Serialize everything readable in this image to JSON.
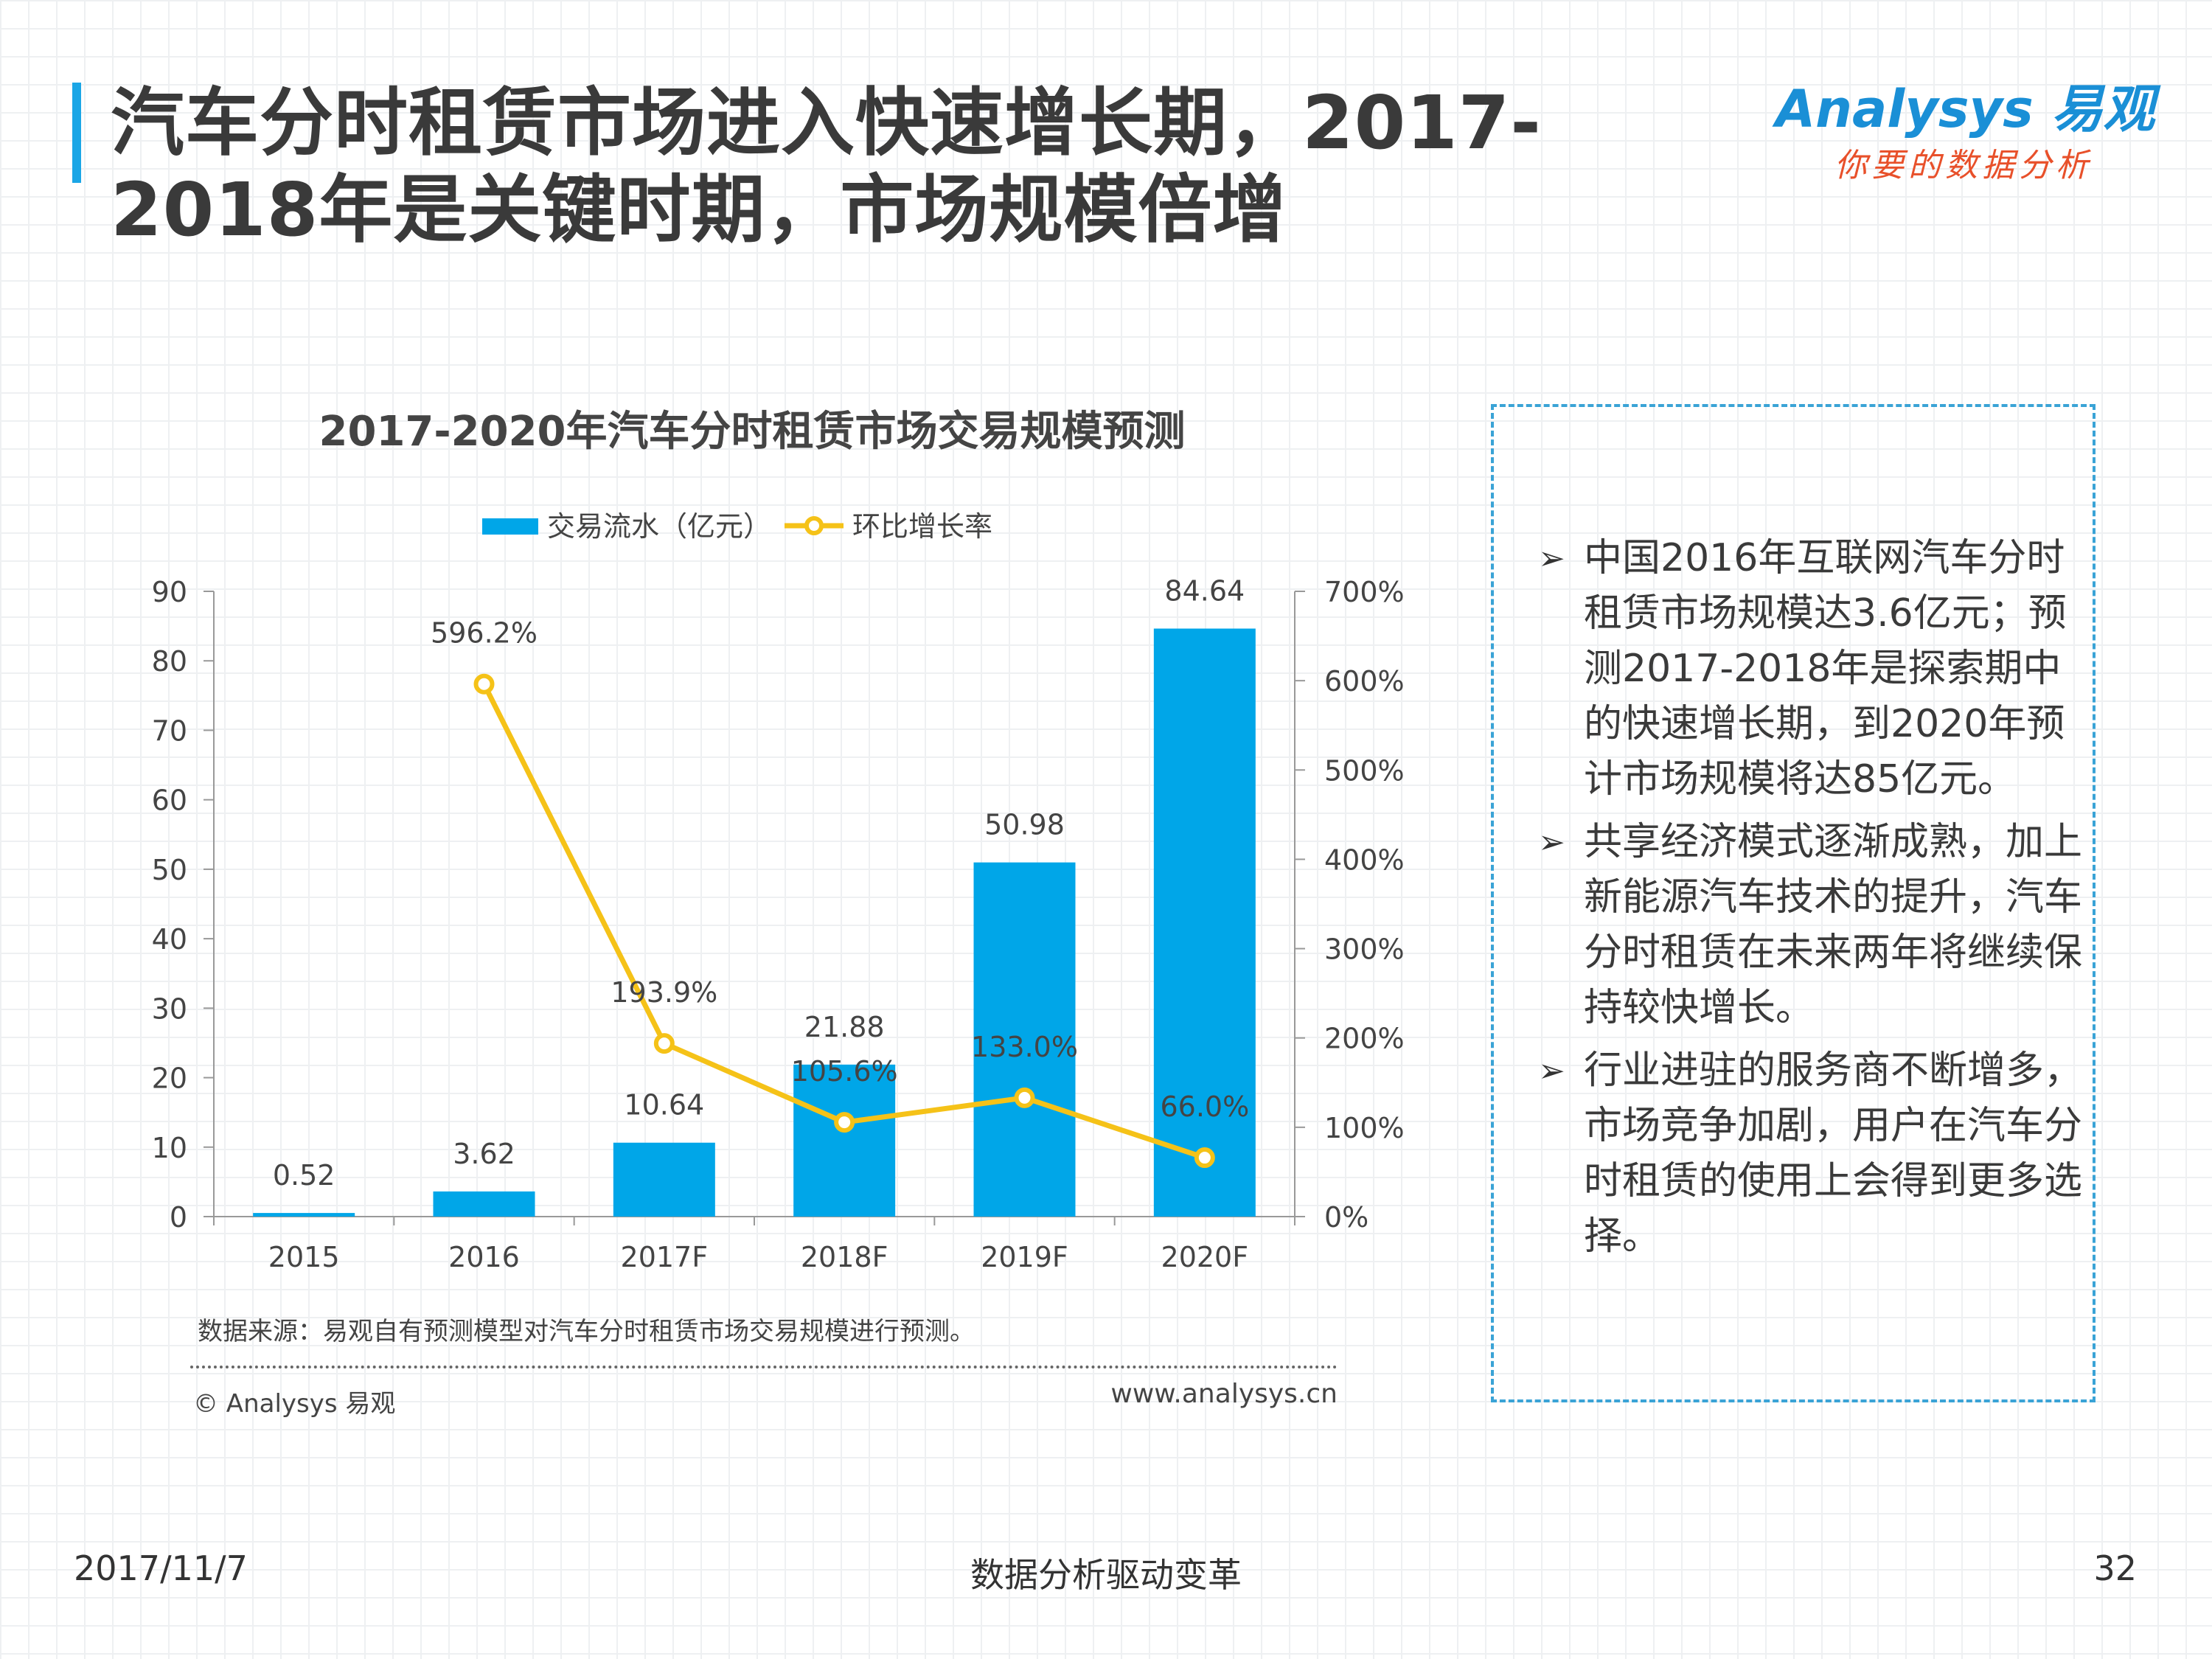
{
  "header": {
    "title": "汽车分时租赁市场进入快速增长期，2017-2018年是关键时期，市场规模倍增",
    "logo_main": "Analysys 易观",
    "logo_sub": "你要的数据分析"
  },
  "chart_data": {
    "type": "bar",
    "title": "2017-2020年汽车分时租赁市场交易规模预测",
    "categories": [
      "2015",
      "2016",
      "2017F",
      "2018F",
      "2019F",
      "2020F"
    ],
    "series": [
      {
        "name": "交易流水（亿元）",
        "type": "bar",
        "axis": "left",
        "values": [
          0.52,
          3.62,
          10.64,
          21.88,
          50.98,
          84.64
        ],
        "labels": [
          "0.52",
          "3.62",
          "10.64",
          "21.88",
          "50.98",
          "84.64"
        ],
        "color": "#00a6e8"
      },
      {
        "name": "环比增长率",
        "type": "line",
        "axis": "right",
        "values": [
          null,
          596.2,
          193.9,
          105.6,
          133.0,
          66.0
        ],
        "labels": [
          "",
          "596.2%",
          "193.9%",
          "105.6%",
          "133.0%",
          "66.0%"
        ],
        "color": "#f5c218"
      }
    ],
    "yleft": {
      "range": [
        0,
        90
      ],
      "ticks": [
        "0",
        "10",
        "20",
        "30",
        "40",
        "50",
        "60",
        "70",
        "80",
        "90"
      ]
    },
    "yright": {
      "range": [
        0,
        700
      ],
      "ticks": [
        "0%",
        "100%",
        "200%",
        "300%",
        "400%",
        "500%",
        "600%",
        "700%"
      ]
    },
    "legend_position": "top-center"
  },
  "source_note": "数据来源：易观自有预测模型对汽车分时租赁市场交易规模进行预测。",
  "copyright": "© Analysys 易观",
  "website": "www.analysys.cn",
  "notes": [
    "中国2016年互联网汽车分时租赁市场规模达3.6亿元；预测2017-2018年是探索期中的快速增长期，到2020年预计市场规模将达85亿元。",
    "共享经济模式逐渐成熟，加上新能源汽车技术的提升，汽车分时租赁在未来两年将继续保持较快增长。",
    "行业进驻的服务商不断增多，市场竞争加剧，用户在汽车分时租赁的使用上会得到更多选择。"
  ],
  "footer": {
    "date": "2017/11/7",
    "center": "数据分析驱动变革",
    "page": "32"
  }
}
